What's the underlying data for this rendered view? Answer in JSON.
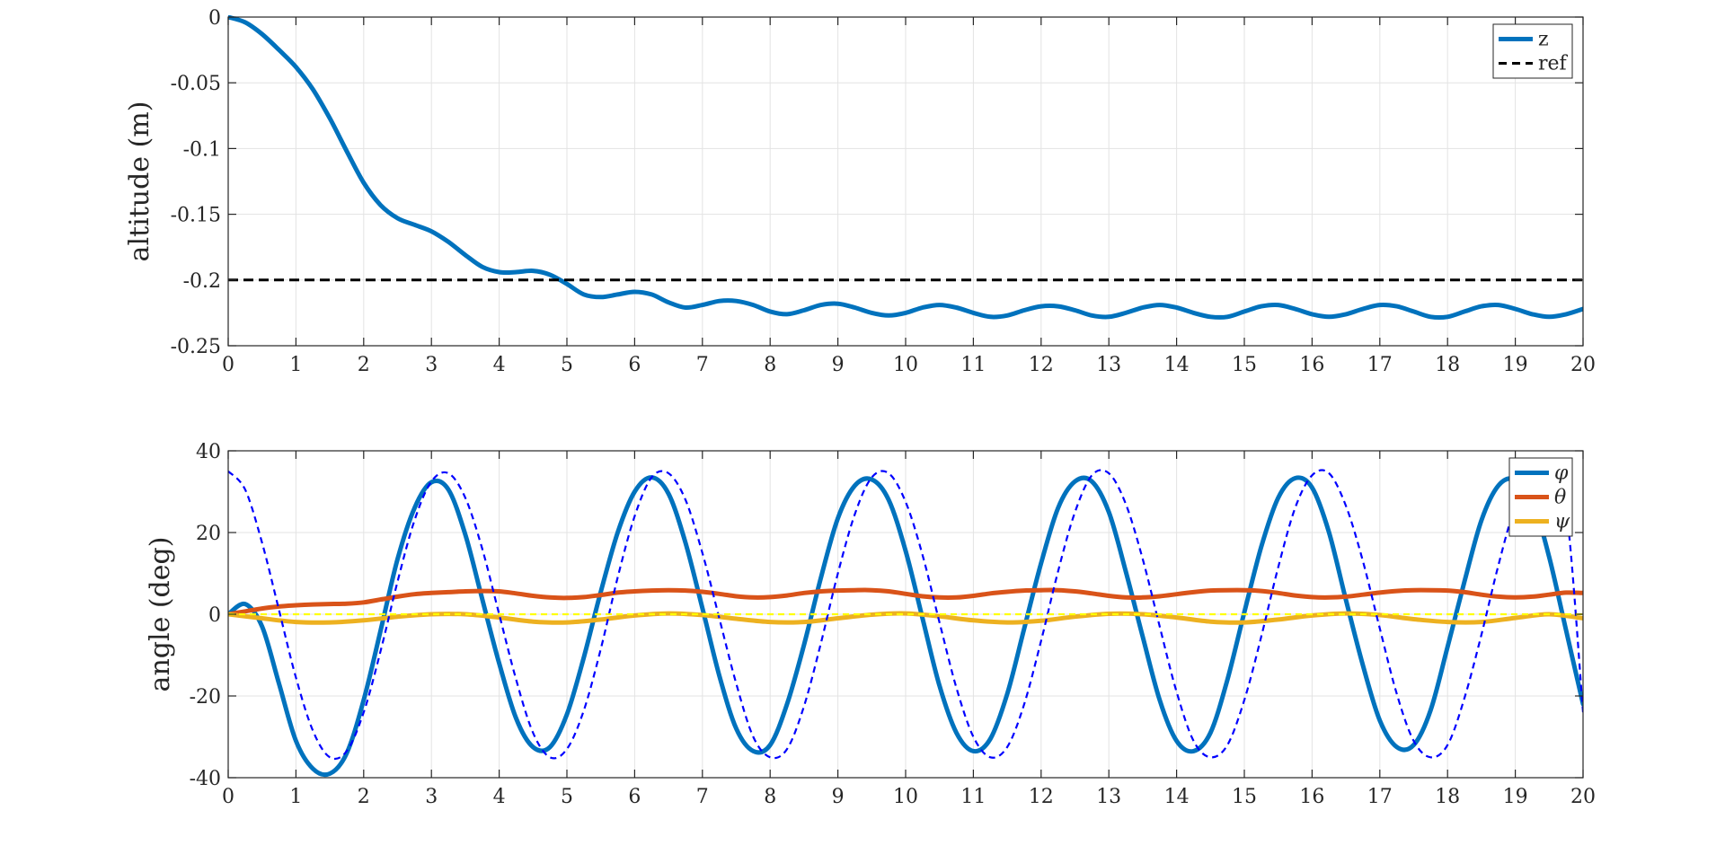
{
  "chart_data": [
    {
      "type": "line",
      "ylabel": "altitude (m)",
      "xlim": [
        0,
        20
      ],
      "ylim": [
        -0.25,
        0
      ],
      "xticks": [
        0,
        1,
        2,
        3,
        4,
        5,
        6,
        7,
        8,
        9,
        10,
        11,
        12,
        13,
        14,
        15,
        16,
        17,
        18,
        19,
        20
      ],
      "yticks": [
        0,
        -0.05,
        -0.1,
        -0.15,
        -0.2,
        -0.25
      ],
      "ytick_labels": [
        "0",
        "-0.05",
        "-0.1",
        "-0.15",
        "-0.2",
        "-0.25"
      ],
      "grid": true,
      "legend_position": "top-right",
      "series": [
        {
          "name": "z",
          "color": "#0072BD",
          "style": "solid",
          "x": [
            0,
            0.25,
            0.5,
            0.75,
            1,
            1.25,
            1.5,
            1.75,
            2,
            2.25,
            2.5,
            2.75,
            3,
            3.25,
            3.5,
            3.75,
            4,
            4.25,
            4.5,
            4.75,
            5,
            5.25,
            5.5,
            5.75,
            6,
            6.25,
            6.5,
            6.75,
            7,
            7.25,
            7.5,
            7.75,
            8,
            8.25,
            8.5,
            8.75,
            9,
            9.25,
            9.5,
            9.75,
            10,
            10.25,
            10.5,
            10.75,
            11,
            11.25,
            11.5,
            11.75,
            12,
            12.25,
            12.5,
            12.75,
            13,
            13.25,
            13.5,
            13.75,
            14,
            14.25,
            14.5,
            14.75,
            15,
            15.25,
            15.5,
            15.75,
            16,
            16.25,
            16.5,
            16.75,
            17,
            17.25,
            17.5,
            17.75,
            18,
            18.25,
            18.5,
            18.75,
            19,
            19.25,
            19.5,
            19.75,
            20
          ],
          "y": [
            0,
            -0.004,
            -0.013,
            -0.025,
            -0.038,
            -0.055,
            -0.077,
            -0.102,
            -0.126,
            -0.143,
            -0.153,
            -0.158,
            -0.163,
            -0.171,
            -0.181,
            -0.19,
            -0.194,
            -0.194,
            -0.193,
            -0.196,
            -0.203,
            -0.211,
            -0.213,
            -0.211,
            -0.209,
            -0.211,
            -0.217,
            -0.221,
            -0.219,
            -0.216,
            -0.216,
            -0.219,
            -0.224,
            -0.226,
            -0.223,
            -0.219,
            -0.218,
            -0.221,
            -0.225,
            -0.227,
            -0.225,
            -0.221,
            -0.219,
            -0.221,
            -0.225,
            -0.228,
            -0.227,
            -0.223,
            -0.22,
            -0.22,
            -0.223,
            -0.227,
            -0.228,
            -0.225,
            -0.221,
            -0.219,
            -0.221,
            -0.225,
            -0.228,
            -0.228,
            -0.224,
            -0.22,
            -0.219,
            -0.222,
            -0.226,
            -0.228,
            -0.226,
            -0.222,
            -0.219,
            -0.22,
            -0.224,
            -0.228,
            -0.228,
            -0.224,
            -0.22,
            -0.219,
            -0.222,
            -0.226,
            -0.228,
            -0.226,
            -0.222
          ]
        },
        {
          "name": "ref",
          "color": "#000000",
          "style": "dashed",
          "x": [
            0,
            20
          ],
          "y": [
            -0.2,
            -0.2
          ]
        }
      ]
    },
    {
      "type": "line",
      "ylabel": "angle (deg)",
      "xlim": [
        0,
        20
      ],
      "ylim": [
        -40,
        40
      ],
      "xticks": [
        0,
        1,
        2,
        3,
        4,
        5,
        6,
        7,
        8,
        9,
        10,
        11,
        12,
        13,
        14,
        15,
        16,
        17,
        18,
        19,
        20
      ],
      "yticks": [
        40,
        20,
        0,
        -20,
        -40
      ],
      "ytick_labels": [
        "40",
        "20",
        "0",
        "-20",
        "-40"
      ],
      "grid": true,
      "legend_position": "top-right",
      "series": [
        {
          "name": "φ",
          "color": "#0072BD",
          "style": "solid",
          "x": [
            0,
            0.25,
            0.5,
            0.75,
            1,
            1.25,
            1.5,
            1.75,
            2,
            2.25,
            2.5,
            2.75,
            3,
            3.25,
            3.5,
            3.75,
            4,
            4.25,
            4.5,
            4.75,
            5,
            5.25,
            5.5,
            5.75,
            6,
            6.25,
            6.5,
            6.75,
            7,
            7.25,
            7.5,
            7.75,
            8,
            8.25,
            8.5,
            8.75,
            9,
            9.25,
            9.5,
            9.75,
            10,
            10.25,
            10.5,
            10.75,
            11,
            11.25,
            11.5,
            11.75,
            12,
            12.25,
            12.5,
            12.75,
            13,
            13.25,
            13.5,
            13.75,
            14,
            14.25,
            14.5,
            14.75,
            15,
            15.25,
            15.5,
            15.75,
            16,
            16.25,
            16.5,
            16.75,
            17,
            17.25,
            17.5,
            17.75,
            18,
            18.25,
            18.5,
            18.75,
            19,
            19.25,
            19.5,
            19.75,
            20
          ],
          "y": [
            0,
            2.5,
            -3,
            -17,
            -31,
            -37.8,
            -39,
            -34,
            -21,
            -4,
            13.5,
            26,
            32.3,
            30.5,
            19.5,
            3.7,
            -12,
            -25.5,
            -32.5,
            -32.5,
            -24.5,
            -10.5,
            5.5,
            20,
            30,
            33.5,
            29.5,
            17.5,
            1.5,
            -15,
            -28,
            -33.5,
            -32,
            -22,
            -7.5,
            9,
            23.5,
            31.5,
            33,
            28,
            15.5,
            -1,
            -17.5,
            -29,
            -33.5,
            -30.5,
            -19.5,
            -3.5,
            12.5,
            26,
            32.5,
            32.5,
            25,
            10.5,
            -5.5,
            -21,
            -31,
            -33.5,
            -29,
            -16,
            0.5,
            16.5,
            28.5,
            33.3,
            31,
            20,
            3.5,
            -12.5,
            -26,
            -32.5,
            -32,
            -23.5,
            -8,
            8,
            23,
            31.5,
            33,
            28,
            14,
            -4,
            -22
          ]
        },
        {
          "name": "θ",
          "color": "#D95319",
          "style": "solid",
          "x": [
            0,
            0.25,
            0.5,
            0.75,
            1,
            1.25,
            1.5,
            1.75,
            2,
            2.25,
            2.5,
            2.75,
            3,
            3.25,
            3.5,
            3.75,
            4,
            4.25,
            4.5,
            4.75,
            5,
            5.25,
            5.5,
            5.75,
            6,
            6.25,
            6.5,
            6.75,
            7,
            7.25,
            7.5,
            7.75,
            8,
            8.25,
            8.5,
            8.75,
            9,
            9.25,
            9.5,
            9.75,
            10,
            10.25,
            10.5,
            10.75,
            11,
            11.25,
            11.5,
            11.75,
            12,
            12.25,
            12.5,
            12.75,
            13,
            13.25,
            13.5,
            13.75,
            14,
            14.25,
            14.5,
            14.75,
            15,
            15.25,
            15.5,
            15.75,
            16,
            16.25,
            16.5,
            16.75,
            17,
            17.25,
            17.5,
            17.75,
            18,
            18.25,
            18.5,
            18.75,
            19,
            19.25,
            19.5,
            19.75,
            20
          ],
          "y": [
            0,
            0.7,
            1.4,
            1.9,
            2.2,
            2.4,
            2.5,
            2.6,
            2.9,
            3.6,
            4.3,
            4.9,
            5.2,
            5.4,
            5.6,
            5.7,
            5.6,
            5.1,
            4.5,
            4.1,
            4,
            4.2,
            4.7,
            5.3,
            5.6,
            5.8,
            5.9,
            5.8,
            5.5,
            5,
            4.4,
            4.1,
            4.2,
            4.6,
            5.2,
            5.6,
            5.8,
            5.9,
            5.9,
            5.6,
            5,
            4.4,
            4.1,
            4.1,
            4.5,
            5.1,
            5.5,
            5.8,
            5.9,
            5.9,
            5.6,
            5.1,
            4.5,
            4.1,
            4.1,
            4.4,
            4.9,
            5.4,
            5.8,
            5.9,
            5.9,
            5.7,
            5.2,
            4.6,
            4.2,
            4.1,
            4.3,
            4.8,
            5.3,
            5.7,
            5.9,
            5.9,
            5.8,
            5.4,
            4.8,
            4.3,
            4.1,
            4.3,
            4.8,
            5.3,
            5.2
          ]
        },
        {
          "name": "ψ",
          "color": "#EDB120",
          "style": "solid",
          "x": [
            0,
            0.5,
            1,
            1.5,
            2,
            2.5,
            3,
            3.5,
            4,
            4.5,
            5,
            5.5,
            6,
            6.5,
            7,
            7.5,
            8,
            8.5,
            9,
            9.5,
            10,
            10.5,
            11,
            11.5,
            12,
            12.5,
            13,
            13.5,
            14,
            14.5,
            15,
            15.5,
            16,
            16.5,
            17,
            17.5,
            18,
            18.5,
            19,
            19.5,
            20
          ],
          "y": [
            0,
            -1,
            -1.9,
            -2,
            -1.5,
            -0.6,
            0,
            0,
            -0.8,
            -1.8,
            -2,
            -1.3,
            -0.3,
            0.2,
            -0.2,
            -1.1,
            -1.9,
            -1.9,
            -1,
            -0.1,
            0.2,
            -0.5,
            -1.5,
            -2,
            -1.6,
            -0.6,
            0.1,
            0,
            -0.8,
            -1.8,
            -2,
            -1.3,
            -0.3,
            0.2,
            -0.2,
            -1.2,
            -1.9,
            -1.9,
            -0.9,
            0,
            -1
          ]
        },
        {
          "name": "",
          "color": "#0000FF",
          "style": "dashed",
          "x": [
            0,
            0.25,
            0.5,
            0.75,
            1,
            1.25,
            1.5,
            1.75,
            2,
            2.25,
            2.5,
            2.75,
            3,
            3.25,
            3.5,
            3.75,
            4,
            4.25,
            4.5,
            4.75,
            5,
            5.25,
            5.5,
            5.75,
            6,
            6.25,
            6.5,
            6.75,
            7,
            7.25,
            7.5,
            7.75,
            8,
            8.25,
            8.5,
            8.75,
            9,
            9.25,
            9.5,
            9.75,
            10,
            10.25,
            10.5,
            10.75,
            11,
            11.25,
            11.5,
            11.75,
            12,
            12.25,
            12.5,
            12.75,
            13,
            13.25,
            13.5,
            13.75,
            14,
            14.25,
            14.5,
            14.75,
            15,
            15.25,
            15.5,
            15.75,
            16,
            16.25,
            16.5,
            16.75,
            17,
            17.25,
            17.5,
            17.75,
            18,
            18.25,
            18.5,
            18.75,
            19,
            19.25,
            19.5,
            19.75,
            20
          ],
          "y": [
            35,
            30.5,
            17.5,
            1,
            -15.5,
            -28.5,
            -35,
            -33.5,
            -24,
            -9,
            8,
            23,
            32.5,
            34.5,
            28.5,
            16,
            0,
            -16,
            -29,
            -35,
            -33,
            -23.5,
            -8.5,
            9,
            24,
            33.5,
            34.5,
            28,
            15,
            -1,
            -17,
            -30,
            -35,
            -33,
            -22.5,
            -7,
            10,
            24.5,
            33.5,
            34.5,
            27.5,
            14.5,
            -2,
            -18,
            -30,
            -35,
            -32.5,
            -22,
            -6.5,
            10.5,
            25,
            34,
            34.5,
            27,
            13.5,
            -3,
            -19,
            -31,
            -35,
            -32,
            -21,
            -5.5,
            11.5,
            26,
            34,
            34.5,
            26.5,
            13,
            -3.5,
            -19.5,
            -31,
            -35,
            -32,
            -20.5,
            -5,
            12,
            26.5,
            34.5,
            34,
            26,
            -24
          ]
        },
        {
          "name": "",
          "color": "#FFFF00",
          "style": "dashed",
          "x": [
            0,
            20
          ],
          "y": [
            0,
            0
          ]
        }
      ]
    }
  ]
}
